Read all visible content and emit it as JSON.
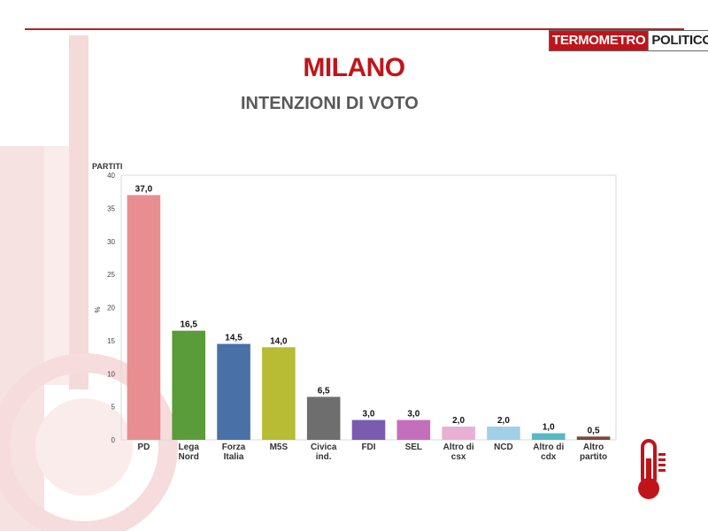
{
  "header": {
    "logo_part1": "TERMOMETRO",
    "logo_part2": "POLITICO",
    "title": "MILANO",
    "subtitle": "INTENZIONI DI VOTO"
  },
  "colors": {
    "brand_red": "#c0141b",
    "watermark": "#f6dcdc"
  },
  "icons": {
    "thermometer": "thermometer-icon"
  },
  "chart_data": {
    "type": "bar",
    "xlabel": "PARTITI",
    "ylabel": "%",
    "ylim": [
      0,
      40
    ],
    "yticks": [
      0,
      5,
      10,
      15,
      20,
      25,
      30,
      35,
      40
    ],
    "grid": false,
    "categories": [
      [
        "PD"
      ],
      [
        "Lega",
        "Nord"
      ],
      [
        "Forza",
        "Italia"
      ],
      [
        "M5S"
      ],
      [
        "Civica",
        "ind."
      ],
      [
        "FDI"
      ],
      [
        "SEL"
      ],
      [
        "Altro di",
        "csx"
      ],
      [
        "NCD"
      ],
      [
        "Altro di",
        "cdx"
      ],
      [
        "Altro",
        "partito"
      ]
    ],
    "values": [
      37.0,
      16.5,
      14.5,
      14.0,
      6.5,
      3.0,
      3.0,
      2.0,
      2.0,
      1.0,
      0.5
    ],
    "value_labels": [
      "37,0",
      "16,5",
      "14,5",
      "14,0",
      "6,5",
      "3,0",
      "3,0",
      "2,0",
      "2,0",
      "1,0",
      "0,5"
    ],
    "bar_colors": [
      "#e88e91",
      "#5a9c3a",
      "#4a70a8",
      "#b8bb34",
      "#6e6e6e",
      "#7b5bb0",
      "#c46fbc",
      "#e9b0d3",
      "#9fd0e6",
      "#57b9c4",
      "#7a4a3a"
    ]
  }
}
